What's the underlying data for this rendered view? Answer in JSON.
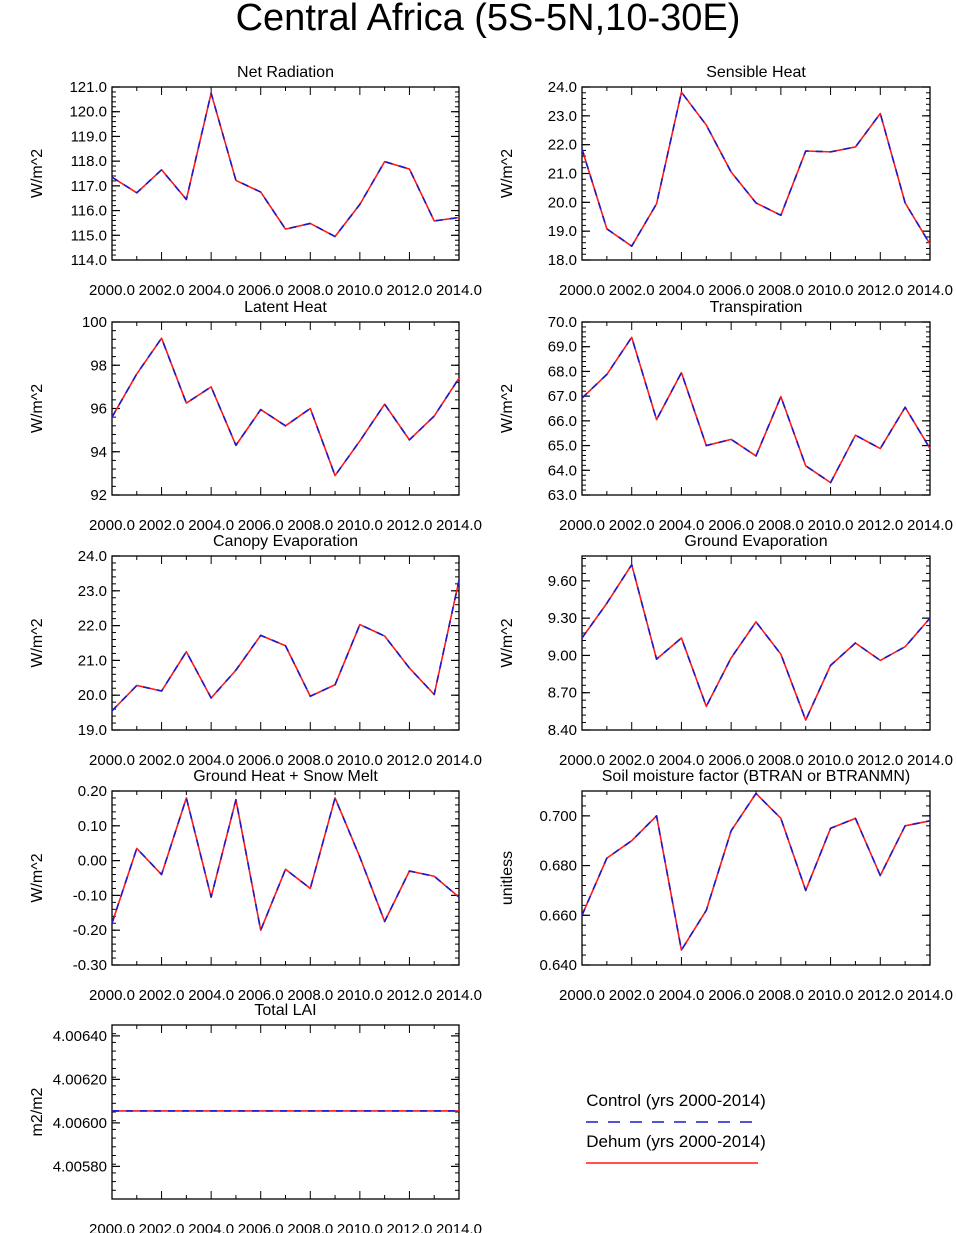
{
  "title": "Central Africa (5S-5N,10-30E)",
  "colors": {
    "control": "#1a1acc",
    "dehum": "#ff1a1a",
    "axis": "#000000"
  },
  "legend": {
    "control_label": "Control (yrs 2000-2014)",
    "dehum_label": "Dehum (yrs 2000-2014)"
  },
  "chart_data": [
    {
      "type": "line",
      "title": "Net Radiation",
      "ylabel": "W/m^2",
      "x": [
        2000,
        2001,
        2002,
        2003,
        2004,
        2005,
        2006,
        2007,
        2008,
        2009,
        2010,
        2011,
        2012,
        2013,
        2014
      ],
      "xlim": [
        2000,
        2014
      ],
      "xticks": [
        "2000.0",
        "2002.0",
        "2004.0",
        "2006.0",
        "2008.0",
        "2010.0",
        "2012.0",
        "2014.0"
      ],
      "ylim": [
        114,
        121
      ],
      "yticks": [
        114,
        115,
        116,
        117,
        118,
        119,
        120,
        121
      ],
      "ytick_labels": [
        "114.0",
        "115.0",
        "116.0",
        "117.0",
        "118.0",
        "119.0",
        "120.0",
        "121.0"
      ],
      "series": [
        {
          "name": "Control (yrs 2000-2014)",
          "values": [
            117.35,
            116.72,
            117.65,
            116.45,
            120.75,
            117.22,
            116.75,
            115.25,
            115.48,
            114.95,
            116.25,
            117.98,
            117.68,
            115.58,
            115.72
          ]
        },
        {
          "name": "Dehum (yrs 2000-2014)",
          "values": [
            117.35,
            116.72,
            117.65,
            116.45,
            120.75,
            117.22,
            116.75,
            115.25,
            115.48,
            114.95,
            116.25,
            117.98,
            117.68,
            115.58,
            115.72
          ]
        }
      ]
    },
    {
      "type": "line",
      "title": "Sensible Heat",
      "ylabel": "W/m^2",
      "x": [
        2000,
        2001,
        2002,
        2003,
        2004,
        2005,
        2006,
        2007,
        2008,
        2009,
        2010,
        2011,
        2012,
        2013,
        2014
      ],
      "xlim": [
        2000,
        2014
      ],
      "xticks": [
        "2000.0",
        "2002.0",
        "2004.0",
        "2006.0",
        "2008.0",
        "2010.0",
        "2012.0",
        "2014.0"
      ],
      "ylim": [
        18,
        24
      ],
      "yticks": [
        18,
        19,
        20,
        21,
        22,
        23,
        24
      ],
      "ytick_labels": [
        "18.0",
        "19.0",
        "20.0",
        "21.0",
        "22.0",
        "23.0",
        "24.0"
      ],
      "series": [
        {
          "name": "Control (yrs 2000-2014)",
          "values": [
            21.85,
            19.08,
            18.48,
            19.95,
            23.82,
            22.68,
            21.05,
            19.98,
            19.55,
            21.78,
            21.75,
            21.92,
            23.08,
            19.98,
            18.55
          ]
        },
        {
          "name": "Dehum (yrs 2000-2014)",
          "values": [
            21.85,
            19.08,
            18.48,
            19.95,
            23.82,
            22.68,
            21.05,
            19.98,
            19.55,
            21.78,
            21.75,
            21.92,
            23.08,
            19.98,
            18.55
          ]
        }
      ]
    },
    {
      "type": "line",
      "title": "Latent Heat",
      "ylabel": "W/m^2",
      "x": [
        2000,
        2001,
        2002,
        2003,
        2004,
        2005,
        2006,
        2007,
        2008,
        2009,
        2010,
        2011,
        2012,
        2013,
        2014
      ],
      "xlim": [
        2000,
        2014
      ],
      "xticks": [
        "2000.0",
        "2002.0",
        "2004.0",
        "2006.0",
        "2008.0",
        "2010.0",
        "2012.0",
        "2014.0"
      ],
      "ylim": [
        92,
        100
      ],
      "yticks": [
        92,
        94,
        96,
        98,
        100
      ],
      "ytick_labels": [
        "92",
        "94",
        "96",
        "98",
        "100"
      ],
      "series": [
        {
          "name": "Control (yrs 2000-2014)",
          "values": [
            95.6,
            97.6,
            99.25,
            96.25,
            97.0,
            94.3,
            95.95,
            95.2,
            96.0,
            92.9,
            94.5,
            96.2,
            94.55,
            95.65,
            97.4
          ]
        },
        {
          "name": "Dehum (yrs 2000-2014)",
          "values": [
            95.6,
            97.6,
            99.25,
            96.25,
            97.0,
            94.3,
            95.95,
            95.2,
            96.0,
            92.9,
            94.5,
            96.2,
            94.55,
            95.65,
            97.4
          ]
        }
      ]
    },
    {
      "type": "line",
      "title": "Transpiration",
      "ylabel": "W/m^2",
      "x": [
        2000,
        2001,
        2002,
        2003,
        2004,
        2005,
        2006,
        2007,
        2008,
        2009,
        2010,
        2011,
        2012,
        2013,
        2014
      ],
      "xlim": [
        2000,
        2014
      ],
      "xticks": [
        "2000.0",
        "2002.0",
        "2004.0",
        "2006.0",
        "2008.0",
        "2010.0",
        "2012.0",
        "2014.0"
      ],
      "ylim": [
        63,
        70
      ],
      "yticks": [
        63,
        64,
        65,
        66,
        67,
        68,
        69,
        70
      ],
      "ytick_labels": [
        "63.0",
        "64.0",
        "65.0",
        "66.0",
        "67.0",
        "68.0",
        "69.0",
        "70.0"
      ],
      "series": [
        {
          "name": "Control (yrs 2000-2014)",
          "values": [
            66.92,
            67.88,
            69.38,
            66.05,
            67.95,
            65.0,
            65.25,
            64.58,
            66.98,
            64.18,
            63.5,
            65.42,
            64.88,
            66.55,
            64.88
          ]
        },
        {
          "name": "Dehum (yrs 2000-2014)",
          "values": [
            66.92,
            67.88,
            69.38,
            66.05,
            67.95,
            65.0,
            65.25,
            64.58,
            66.98,
            64.18,
            63.5,
            65.42,
            64.88,
            66.55,
            64.88
          ]
        }
      ]
    },
    {
      "type": "line",
      "title": "Canopy Evaporation",
      "ylabel": "W/m^2",
      "x": [
        2000,
        2001,
        2002,
        2003,
        2004,
        2005,
        2006,
        2007,
        2008,
        2009,
        2010,
        2011,
        2012,
        2013,
        2014
      ],
      "xlim": [
        2000,
        2014
      ],
      "xticks": [
        "2000.0",
        "2002.0",
        "2004.0",
        "2006.0",
        "2008.0",
        "2010.0",
        "2012.0",
        "2014.0"
      ],
      "ylim": [
        19,
        24
      ],
      "yticks": [
        19,
        20,
        21,
        22,
        23,
        24
      ],
      "ytick_labels": [
        "19.0",
        "20.0",
        "21.0",
        "22.0",
        "23.0",
        "24.0"
      ],
      "series": [
        {
          "name": "Control (yrs 2000-2014)",
          "values": [
            19.55,
            20.28,
            20.12,
            21.25,
            19.92,
            20.72,
            21.72,
            21.42,
            19.97,
            20.3,
            22.03,
            21.7,
            20.78,
            20.02,
            23.3
          ]
        },
        {
          "name": "Dehum (yrs 2000-2014)",
          "values": [
            19.55,
            20.28,
            20.12,
            21.25,
            19.92,
            20.72,
            21.72,
            21.42,
            19.97,
            20.3,
            22.03,
            21.7,
            20.78,
            20.02,
            23.3
          ]
        }
      ]
    },
    {
      "type": "line",
      "title": "Ground Evaporation",
      "ylabel": "W/m^2",
      "x": [
        2000,
        2001,
        2002,
        2003,
        2004,
        2005,
        2006,
        2007,
        2008,
        2009,
        2010,
        2011,
        2012,
        2013,
        2014
      ],
      "xlim": [
        2000,
        2014
      ],
      "xticks": [
        "2000.0",
        "2002.0",
        "2004.0",
        "2006.0",
        "2008.0",
        "2010.0",
        "2012.0",
        "2014.0"
      ],
      "ylim": [
        8.4,
        9.8
      ],
      "yticks": [
        8.4,
        8.7,
        9.0,
        9.3,
        9.6
      ],
      "ytick_labels": [
        "8.40",
        "8.70",
        "9.00",
        "9.30",
        "9.60"
      ],
      "series": [
        {
          "name": "Control (yrs 2000-2014)",
          "values": [
            9.14,
            9.42,
            9.73,
            8.97,
            9.14,
            8.59,
            8.98,
            9.27,
            9.01,
            8.48,
            8.92,
            9.1,
            8.96,
            9.07,
            9.3
          ]
        },
        {
          "name": "Dehum (yrs 2000-2014)",
          "values": [
            9.14,
            9.42,
            9.73,
            8.97,
            9.14,
            8.59,
            8.98,
            9.27,
            9.01,
            8.48,
            8.92,
            9.1,
            8.96,
            9.07,
            9.3
          ]
        }
      ]
    },
    {
      "type": "line",
      "title": "Ground Heat + Snow Melt",
      "ylabel": "W/m^2",
      "x": [
        2000,
        2001,
        2002,
        2003,
        2004,
        2005,
        2006,
        2007,
        2008,
        2009,
        2010,
        2011,
        2012,
        2013,
        2014
      ],
      "xlim": [
        2000,
        2014
      ],
      "xticks": [
        "2000.0",
        "2002.0",
        "2004.0",
        "2006.0",
        "2008.0",
        "2010.0",
        "2012.0",
        "2014.0"
      ],
      "ylim": [
        -0.3,
        0.2
      ],
      "yticks": [
        -0.3,
        -0.2,
        -0.1,
        0.0,
        0.1,
        0.2
      ],
      "ytick_labels": [
        "-0.30",
        "-0.20",
        "-0.10",
        "0.00",
        "0.10",
        "0.20"
      ],
      "series": [
        {
          "name": "Control (yrs 2000-2014)",
          "values": [
            -0.18,
            0.035,
            -0.04,
            0.18,
            -0.105,
            0.175,
            -0.2,
            -0.025,
            -0.08,
            0.18,
            0.01,
            -0.175,
            -0.03,
            -0.045,
            -0.105
          ]
        },
        {
          "name": "Dehum (yrs 2000-2014)",
          "values": [
            -0.18,
            0.035,
            -0.04,
            0.18,
            -0.105,
            0.175,
            -0.2,
            -0.025,
            -0.08,
            0.18,
            0.01,
            -0.175,
            -0.03,
            -0.045,
            -0.105
          ]
        }
      ]
    },
    {
      "type": "line",
      "title": "Soil moisture factor (BTRAN or BTRANMN)",
      "ylabel": "unitless",
      "x": [
        2000,
        2001,
        2002,
        2003,
        2004,
        2005,
        2006,
        2007,
        2008,
        2009,
        2010,
        2011,
        2012,
        2013,
        2014
      ],
      "xlim": [
        2000,
        2014
      ],
      "xticks": [
        "2000.0",
        "2002.0",
        "2004.0",
        "2006.0",
        "2008.0",
        "2010.0",
        "2012.0",
        "2014.0"
      ],
      "ylim": [
        0.64,
        0.71
      ],
      "yticks": [
        0.64,
        0.66,
        0.68,
        0.7
      ],
      "ytick_labels": [
        "0.640",
        "0.660",
        "0.680",
        "0.700"
      ],
      "series": [
        {
          "name": "Control (yrs 2000-2014)",
          "values": [
            0.66,
            0.683,
            0.69,
            0.7,
            0.646,
            0.662,
            0.694,
            0.709,
            0.699,
            0.67,
            0.695,
            0.699,
            0.676,
            0.696,
            0.698
          ]
        },
        {
          "name": "Dehum (yrs 2000-2014)",
          "values": [
            0.66,
            0.683,
            0.69,
            0.7,
            0.646,
            0.662,
            0.694,
            0.709,
            0.699,
            0.67,
            0.695,
            0.699,
            0.676,
            0.696,
            0.698
          ]
        }
      ]
    },
    {
      "type": "line",
      "title": "Total LAI",
      "ylabel": "m2/m2",
      "x": [
        2000,
        2001,
        2002,
        2003,
        2004,
        2005,
        2006,
        2007,
        2008,
        2009,
        2010,
        2011,
        2012,
        2013,
        2014
      ],
      "xlim": [
        2000,
        2014
      ],
      "xticks": [
        "2000.0",
        "2002.0",
        "2004.0",
        "2006.0",
        "2008.0",
        "2010.0",
        "2012.0",
        "2014.0"
      ],
      "ylim": [
        4.00565,
        4.00645
      ],
      "yticks": [
        4.0058,
        4.006,
        4.0062,
        4.0064
      ],
      "ytick_labels": [
        "4.00580",
        "4.00600",
        "4.00620",
        "4.00640"
      ],
      "series": [
        {
          "name": "Control (yrs 2000-2014)",
          "values": [
            4.006055,
            4.006055,
            4.006055,
            4.006055,
            4.006055,
            4.006055,
            4.006055,
            4.006055,
            4.006055,
            4.006055,
            4.006055,
            4.006055,
            4.006055,
            4.006055,
            4.006055
          ]
        },
        {
          "name": "Dehum (yrs 2000-2014)",
          "values": [
            4.006055,
            4.006055,
            4.006055,
            4.006055,
            4.006055,
            4.006055,
            4.006055,
            4.006055,
            4.006055,
            4.006055,
            4.006055,
            4.006055,
            4.006055,
            4.006055,
            4.006055
          ]
        }
      ]
    }
  ]
}
